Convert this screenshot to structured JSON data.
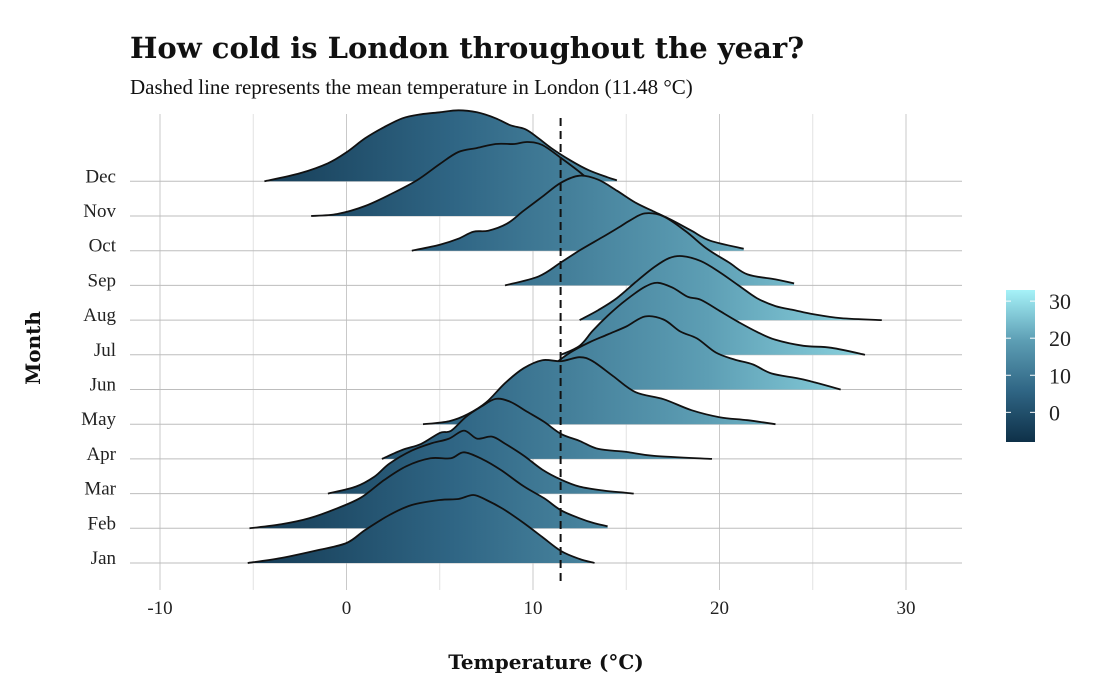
{
  "chart_data": {
    "type": "ridgeline",
    "title": "How cold is London throughout the year?",
    "subtitle": "Dashed line represents the mean temperature in London (11.48 °C)",
    "xlabel": "Temperature (°C)",
    "ylabel": "Month",
    "xlim": [
      -12,
      33
    ],
    "x_ticks": [
      "-10",
      "0",
      "10",
      "20",
      "30"
    ],
    "x_tick_values": [
      -10,
      0,
      10,
      20,
      30
    ],
    "mean_temperature": 11.48,
    "grid": true,
    "legend": {
      "position": "right",
      "type": "colorbar",
      "ticks": [
        "0",
        "10",
        "20",
        "30"
      ],
      "tick_values": [
        0,
        10,
        20,
        30
      ],
      "range": [
        -8,
        33
      ],
      "colors": [
        "#0e3048",
        "#2f6584",
        "#5d9eb4",
        "#a6f2f8"
      ]
    },
    "months": [
      {
        "name": "Jan",
        "curve": [
          [
            -5.3,
            0
          ],
          [
            -3.5,
            0.05
          ],
          [
            -1.5,
            0.13
          ],
          [
            0,
            0.2
          ],
          [
            1,
            0.33
          ],
          [
            2.3,
            0.48
          ],
          [
            3.5,
            0.58
          ],
          [
            5,
            0.63
          ],
          [
            6,
            0.64
          ],
          [
            6.8,
            0.68
          ],
          [
            7.5,
            0.63
          ],
          [
            8.4,
            0.54
          ],
          [
            9.5,
            0.4
          ],
          [
            10.5,
            0.26
          ],
          [
            11.5,
            0.12
          ],
          [
            12.5,
            0.04
          ],
          [
            13.3,
            0
          ]
        ]
      },
      {
        "name": "Feb",
        "curve": [
          [
            -5.2,
            0
          ],
          [
            -3.5,
            0.04
          ],
          [
            -2,
            0.1
          ],
          [
            -0.5,
            0.2
          ],
          [
            0.8,
            0.31
          ],
          [
            2,
            0.48
          ],
          [
            3.2,
            0.62
          ],
          [
            4.5,
            0.7
          ],
          [
            5.6,
            0.7
          ],
          [
            6.3,
            0.76
          ],
          [
            7.3,
            0.69
          ],
          [
            8.3,
            0.58
          ],
          [
            9.5,
            0.42
          ],
          [
            10.6,
            0.3
          ],
          [
            11.5,
            0.18
          ],
          [
            12.5,
            0.1
          ],
          [
            13.3,
            0.05
          ],
          [
            14,
            0.02
          ]
        ]
      },
      {
        "name": "Mar",
        "curve": [
          [
            -1,
            0
          ],
          [
            0.5,
            0.07
          ],
          [
            1.5,
            0.17
          ],
          [
            2.3,
            0.3
          ],
          [
            3.5,
            0.43
          ],
          [
            4.5,
            0.5
          ],
          [
            5.5,
            0.55
          ],
          [
            6.3,
            0.63
          ],
          [
            7,
            0.55
          ],
          [
            7.8,
            0.57
          ],
          [
            8.5,
            0.5
          ],
          [
            9.5,
            0.38
          ],
          [
            10.5,
            0.24
          ],
          [
            11.5,
            0.14
          ],
          [
            12.5,
            0.07
          ],
          [
            13.8,
            0.03
          ],
          [
            14.9,
            0.01
          ],
          [
            15.4,
            0
          ]
        ]
      },
      {
        "name": "Apr",
        "curve": [
          [
            1.9,
            0
          ],
          [
            3,
            0.09
          ],
          [
            4,
            0.15
          ],
          [
            5,
            0.26
          ],
          [
            5.6,
            0.28
          ],
          [
            6.4,
            0.42
          ],
          [
            7.2,
            0.52
          ],
          [
            8,
            0.6
          ],
          [
            8.8,
            0.57
          ],
          [
            9.7,
            0.47
          ],
          [
            10.6,
            0.37
          ],
          [
            11.5,
            0.25
          ],
          [
            12.5,
            0.18
          ],
          [
            13.5,
            0.1
          ],
          [
            15,
            0.07
          ],
          [
            16.5,
            0.03
          ],
          [
            19.6,
            0
          ]
        ]
      },
      {
        "name": "May",
        "curve": [
          [
            4.1,
            0
          ],
          [
            5.5,
            0.03
          ],
          [
            6.5,
            0.1
          ],
          [
            7.5,
            0.22
          ],
          [
            8.5,
            0.41
          ],
          [
            9.5,
            0.56
          ],
          [
            10.5,
            0.64
          ],
          [
            11.5,
            0.63
          ],
          [
            12.5,
            0.67
          ],
          [
            13.2,
            0.63
          ],
          [
            14.3,
            0.48
          ],
          [
            15.5,
            0.32
          ],
          [
            17,
            0.25
          ],
          [
            18.5,
            0.14
          ],
          [
            20,
            0.07
          ],
          [
            21.5,
            0.04
          ],
          [
            23,
            0
          ]
        ]
      },
      {
        "name": "Jun",
        "curve": [
          [
            8.6,
            0
          ],
          [
            10.3,
            0.1
          ],
          [
            11.2,
            0.26
          ],
          [
            12,
            0.37
          ],
          [
            13,
            0.47
          ],
          [
            14,
            0.55
          ],
          [
            15,
            0.63
          ],
          [
            16,
            0.73
          ],
          [
            17,
            0.7
          ],
          [
            17.9,
            0.58
          ],
          [
            18.8,
            0.51
          ],
          [
            19.8,
            0.37
          ],
          [
            20.8,
            0.3
          ],
          [
            21.8,
            0.25
          ],
          [
            22.8,
            0.16
          ],
          [
            24.5,
            0.1
          ],
          [
            26.5,
            0
          ]
        ]
      },
      {
        "name": "Jul",
        "curve": [
          [
            11.5,
            0
          ],
          [
            12.5,
            0.09
          ],
          [
            13.2,
            0.24
          ],
          [
            14,
            0.39
          ],
          [
            15,
            0.55
          ],
          [
            16,
            0.68
          ],
          [
            16.7,
            0.72
          ],
          [
            17.5,
            0.67
          ],
          [
            18.3,
            0.58
          ],
          [
            19,
            0.55
          ],
          [
            20,
            0.44
          ],
          [
            21,
            0.33
          ],
          [
            22,
            0.23
          ],
          [
            23,
            0.15
          ],
          [
            24.5,
            0.09
          ],
          [
            26,
            0.07
          ],
          [
            27.8,
            0
          ]
        ]
      },
      {
        "name": "Aug",
        "curve": [
          [
            12.5,
            0
          ],
          [
            13.5,
            0.1
          ],
          [
            14.5,
            0.22
          ],
          [
            15.5,
            0.38
          ],
          [
            16.5,
            0.53
          ],
          [
            17.3,
            0.62
          ],
          [
            18,
            0.64
          ],
          [
            19,
            0.59
          ],
          [
            20,
            0.48
          ],
          [
            21,
            0.35
          ],
          [
            22,
            0.22
          ],
          [
            23,
            0.14
          ],
          [
            24,
            0.1
          ],
          [
            25,
            0.06
          ],
          [
            26.5,
            0.02
          ],
          [
            28.7,
            0
          ]
        ]
      },
      {
        "name": "Sep",
        "curve": [
          [
            8.5,
            0
          ],
          [
            10.3,
            0.09
          ],
          [
            11.5,
            0.23
          ],
          [
            12.5,
            0.35
          ],
          [
            13.7,
            0.48
          ],
          [
            14.6,
            0.58
          ],
          [
            15.2,
            0.65
          ],
          [
            16,
            0.72
          ],
          [
            17,
            0.69
          ],
          [
            18.2,
            0.54
          ],
          [
            19.3,
            0.37
          ],
          [
            20.5,
            0.23
          ],
          [
            21.5,
            0.11
          ],
          [
            23,
            0.06
          ],
          [
            24,
            0.02
          ]
        ]
      },
      {
        "name": "Oct",
        "curve": [
          [
            3.5,
            0
          ],
          [
            5,
            0.06
          ],
          [
            6,
            0.12
          ],
          [
            6.8,
            0.19
          ],
          [
            7.6,
            0.2
          ],
          [
            8.6,
            0.27
          ],
          [
            9.5,
            0.4
          ],
          [
            10.5,
            0.54
          ],
          [
            11.5,
            0.68
          ],
          [
            12.5,
            0.75
          ],
          [
            13.5,
            0.71
          ],
          [
            14.5,
            0.6
          ],
          [
            15.5,
            0.48
          ],
          [
            16.5,
            0.39
          ],
          [
            17.5,
            0.3
          ],
          [
            18.5,
            0.2
          ],
          [
            19.5,
            0.1
          ],
          [
            21.3,
            0.02
          ]
        ]
      },
      {
        "name": "Nov",
        "curve": [
          [
            -1.9,
            0
          ],
          [
            -0.5,
            0.02
          ],
          [
            1,
            0.1
          ],
          [
            2.5,
            0.23
          ],
          [
            3.8,
            0.36
          ],
          [
            5,
            0.52
          ],
          [
            6,
            0.64
          ],
          [
            7,
            0.68
          ],
          [
            8,
            0.72
          ],
          [
            9,
            0.72
          ],
          [
            9.7,
            0.74
          ],
          [
            10.5,
            0.71
          ],
          [
            11.5,
            0.58
          ],
          [
            12.5,
            0.44
          ],
          [
            13.5,
            0.28
          ],
          [
            14.5,
            0.13
          ],
          [
            15.5,
            0.04
          ],
          [
            16.5,
            0
          ]
        ]
      },
      {
        "name": "Dec",
        "curve": [
          [
            -4.4,
            0
          ],
          [
            -2.5,
            0.08
          ],
          [
            -1,
            0.18
          ],
          [
            0,
            0.29
          ],
          [
            1,
            0.43
          ],
          [
            2,
            0.54
          ],
          [
            3,
            0.63
          ],
          [
            4,
            0.67
          ],
          [
            5,
            0.69
          ],
          [
            6,
            0.71
          ],
          [
            7,
            0.69
          ],
          [
            8,
            0.63
          ],
          [
            8.8,
            0.56
          ],
          [
            9.6,
            0.52
          ],
          [
            10.3,
            0.43
          ],
          [
            11,
            0.33
          ],
          [
            12,
            0.21
          ],
          [
            13,
            0.11
          ],
          [
            14,
            0.04
          ],
          [
            14.5,
            0.01
          ]
        ]
      }
    ]
  }
}
